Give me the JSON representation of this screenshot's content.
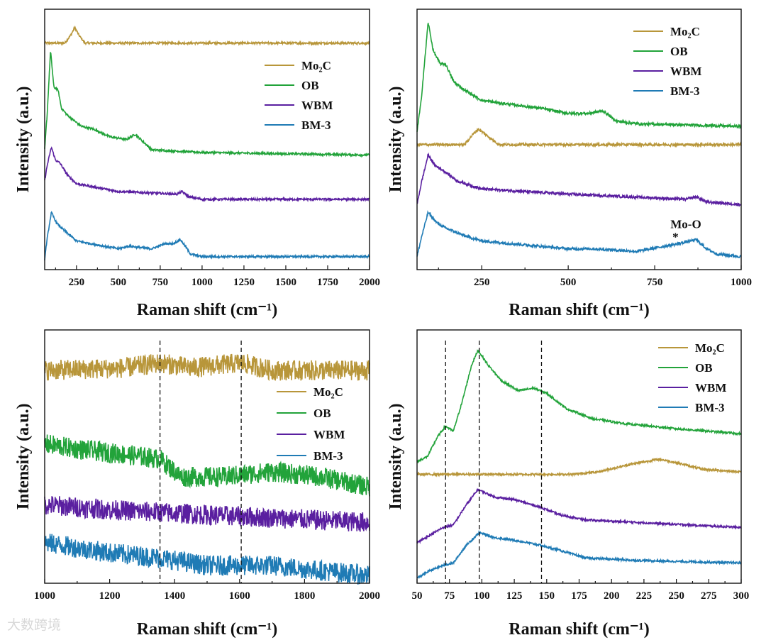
{
  "chart_data": [
    {
      "type": "line",
      "id": "p1",
      "xlabel": "Raman shift (cm⁻¹)",
      "ylabel": "Intensity (a.u.)",
      "xlim": [
        60,
        2000
      ],
      "ylim": [
        0,
        1
      ],
      "xticks": [
        250,
        500,
        750,
        1000,
        1250,
        1500,
        1750,
        2000
      ],
      "minor_step": 125,
      "legend_position": "upper-right-center",
      "noise": 0.004,
      "series": [
        {
          "name": "Mo₂C",
          "color": "#b8963a",
          "points": [
            [
              60,
              0.87
            ],
            [
              180,
              0.87
            ],
            [
              215,
              0.9
            ],
            [
              240,
              0.93
            ],
            [
              265,
              0.9
            ],
            [
              300,
              0.87
            ],
            [
              2000,
              0.87
            ]
          ]
        },
        {
          "name": "OB",
          "color": "#22a33a",
          "points": [
            [
              60,
              0.46
            ],
            [
              75,
              0.6
            ],
            [
              95,
              0.84
            ],
            [
              115,
              0.7
            ],
            [
              140,
              0.69
            ],
            [
              160,
              0.62
            ],
            [
              200,
              0.59
            ],
            [
              280,
              0.55
            ],
            [
              350,
              0.54
            ],
            [
              450,
              0.51
            ],
            [
              550,
              0.5
            ],
            [
              600,
              0.52
            ],
            [
              650,
              0.49
            ],
            [
              700,
              0.46
            ],
            [
              1000,
              0.45
            ],
            [
              2000,
              0.44
            ]
          ]
        },
        {
          "name": "WBM",
          "color": "#5a1fa0",
          "points": [
            [
              60,
              0.34
            ],
            [
              75,
              0.4
            ],
            [
              100,
              0.47
            ],
            [
              125,
              0.42
            ],
            [
              150,
              0.41
            ],
            [
              200,
              0.36
            ],
            [
              250,
              0.33
            ],
            [
              500,
              0.3
            ],
            [
              850,
              0.29
            ],
            [
              880,
              0.3
            ],
            [
              920,
              0.28
            ],
            [
              1000,
              0.27
            ],
            [
              2000,
              0.27
            ]
          ]
        },
        {
          "name": "BM-3",
          "color": "#1f7bb5",
          "points": [
            [
              60,
              0.04
            ],
            [
              75,
              0.12
            ],
            [
              100,
              0.22
            ],
            [
              130,
              0.18
            ],
            [
              160,
              0.16
            ],
            [
              250,
              0.11
            ],
            [
              500,
              0.08
            ],
            [
              560,
              0.09
            ],
            [
              700,
              0.08
            ],
            [
              780,
              0.1
            ],
            [
              830,
              0.1
            ],
            [
              870,
              0.115
            ],
            [
              900,
              0.09
            ],
            [
              930,
              0.06
            ],
            [
              1000,
              0.05
            ],
            [
              2000,
              0.05
            ]
          ]
        }
      ]
    },
    {
      "type": "line",
      "id": "p2",
      "xlabel": "Raman shift (cm⁻¹)",
      "ylabel": "Intensity (a.u.)",
      "xlim": [
        63,
        1000
      ],
      "ylim": [
        0,
        1
      ],
      "xticks": [
        250,
        500,
        750,
        1000
      ],
      "minor_step": 125,
      "legend_position": "top-right",
      "noise": 0.005,
      "annotations": [
        {
          "text": "Mo-O",
          "x": 840,
          "y": 0.16
        },
        {
          "text": "*",
          "x": 810,
          "y": 0.11
        }
      ],
      "series": [
        {
          "name": "Mo₂C",
          "color": "#b8963a",
          "points": [
            [
              63,
              0.48
            ],
            [
              200,
              0.48
            ],
            [
              225,
              0.52
            ],
            [
              240,
              0.54
            ],
            [
              260,
              0.52
            ],
            [
              300,
              0.48
            ],
            [
              1000,
              0.48
            ]
          ]
        },
        {
          "name": "OB",
          "color": "#22a33a",
          "points": [
            [
              63,
              0.53
            ],
            [
              75,
              0.65
            ],
            [
              85,
              0.8
            ],
            [
              95,
              0.95
            ],
            [
              110,
              0.84
            ],
            [
              130,
              0.79
            ],
            [
              145,
              0.79
            ],
            [
              170,
              0.72
            ],
            [
              200,
              0.69
            ],
            [
              250,
              0.65
            ],
            [
              300,
              0.64
            ],
            [
              360,
              0.63
            ],
            [
              420,
              0.62
            ],
            [
              500,
              0.6
            ],
            [
              560,
              0.6
            ],
            [
              600,
              0.61
            ],
            [
              640,
              0.57
            ],
            [
              700,
              0.56
            ],
            [
              1000,
              0.55
            ]
          ]
        },
        {
          "name": "WBM",
          "color": "#5a1fa0",
          "points": [
            [
              63,
              0.25
            ],
            [
              75,
              0.33
            ],
            [
              95,
              0.44
            ],
            [
              115,
              0.4
            ],
            [
              140,
              0.38
            ],
            [
              180,
              0.34
            ],
            [
              250,
              0.31
            ],
            [
              500,
              0.29
            ],
            [
              840,
              0.27
            ],
            [
              870,
              0.28
            ],
            [
              900,
              0.26
            ],
            [
              1000,
              0.25
            ]
          ]
        },
        {
          "name": "BM-3",
          "color": "#1f7bb5",
          "points": [
            [
              63,
              0.05
            ],
            [
              75,
              0.12
            ],
            [
              95,
              0.22
            ],
            [
              120,
              0.18
            ],
            [
              145,
              0.16
            ],
            [
              200,
              0.13
            ],
            [
              250,
              0.11
            ],
            [
              500,
              0.08
            ],
            [
              570,
              0.08
            ],
            [
              700,
              0.07
            ],
            [
              780,
              0.09
            ],
            [
              820,
              0.1
            ],
            [
              870,
              0.115
            ],
            [
              900,
              0.08
            ],
            [
              930,
              0.06
            ],
            [
              1000,
              0.05
            ]
          ]
        }
      ]
    },
    {
      "type": "line",
      "id": "p3",
      "xlabel": "Raman shift (cm⁻¹)",
      "ylabel": "Intensity (a.u.)",
      "xlim": [
        1000,
        2000
      ],
      "ylim": [
        0,
        1
      ],
      "xticks": [
        1000,
        1200,
        1400,
        1600,
        1800,
        2000
      ],
      "minor_step": 100,
      "legend_position": "middle-right",
      "noise": 0.04,
      "vlines": [
        1355,
        1605
      ],
      "series": [
        {
          "name": "Mo₂C",
          "color": "#b8963a",
          "points": [
            [
              1000,
              0.84
            ],
            [
              1250,
              0.85
            ],
            [
              1355,
              0.87
            ],
            [
              1450,
              0.85
            ],
            [
              1605,
              0.87
            ],
            [
              1700,
              0.84
            ],
            [
              2000,
              0.84
            ]
          ]
        },
        {
          "name": "OB",
          "color": "#22a33a",
          "points": [
            [
              1000,
              0.55
            ],
            [
              1100,
              0.53
            ],
            [
              1300,
              0.5
            ],
            [
              1355,
              0.49
            ],
            [
              1420,
              0.42
            ],
            [
              1550,
              0.42
            ],
            [
              1700,
              0.44
            ],
            [
              1850,
              0.42
            ],
            [
              2000,
              0.38
            ]
          ]
        },
        {
          "name": "WBM",
          "color": "#5a1fa0",
          "points": [
            [
              1000,
              0.31
            ],
            [
              1200,
              0.29
            ],
            [
              1500,
              0.27
            ],
            [
              2000,
              0.24
            ]
          ]
        },
        {
          "name": "BM-3",
          "color": "#1f7bb5",
          "points": [
            [
              1000,
              0.16
            ],
            [
              1200,
              0.12
            ],
            [
              1355,
              0.1
            ],
            [
              1500,
              0.07
            ],
            [
              1700,
              0.07
            ],
            [
              2000,
              0.03
            ]
          ]
        }
      ]
    },
    {
      "type": "line",
      "id": "p4",
      "xlabel": "Raman shift (cm⁻¹)",
      "ylabel": "Intensity (a.u.)",
      "xlim": [
        50,
        300
      ],
      "ylim": [
        0,
        1
      ],
      "xticks": [
        50,
        75,
        100,
        125,
        150,
        175,
        200,
        225,
        250,
        275,
        300
      ],
      "minor_step": 12.5,
      "legend_position": "top-right",
      "noise": 0.004,
      "vlines": [
        72,
        98,
        146
      ],
      "series": [
        {
          "name": "Mo₂C",
          "color": "#b8963a",
          "points": [
            [
              50,
              0.43
            ],
            [
              170,
              0.43
            ],
            [
              190,
              0.44
            ],
            [
              215,
              0.47
            ],
            [
              237,
              0.49
            ],
            [
              255,
              0.47
            ],
            [
              270,
              0.45
            ],
            [
              300,
              0.44
            ]
          ]
        },
        {
          "name": "OB",
          "color": "#22a33a",
          "points": [
            [
              50,
              0.48
            ],
            [
              58,
              0.5
            ],
            [
              66,
              0.58
            ],
            [
              72,
              0.62
            ],
            [
              78,
              0.6
            ],
            [
              85,
              0.72
            ],
            [
              92,
              0.86
            ],
            [
              97,
              0.92
            ],
            [
              105,
              0.86
            ],
            [
              115,
              0.8
            ],
            [
              128,
              0.76
            ],
            [
              140,
              0.77
            ],
            [
              150,
              0.75
            ],
            [
              165,
              0.69
            ],
            [
              185,
              0.65
            ],
            [
              210,
              0.63
            ],
            [
              250,
              0.61
            ],
            [
              300,
              0.59
            ]
          ]
        },
        {
          "name": "WBM",
          "color": "#5a1fa0",
          "points": [
            [
              50,
              0.16
            ],
            [
              60,
              0.19
            ],
            [
              70,
              0.22
            ],
            [
              78,
              0.23
            ],
            [
              88,
              0.31
            ],
            [
              97,
              0.37
            ],
            [
              110,
              0.34
            ],
            [
              125,
              0.33
            ],
            [
              145,
              0.3
            ],
            [
              160,
              0.27
            ],
            [
              180,
              0.25
            ],
            [
              220,
              0.24
            ],
            [
              300,
              0.22
            ]
          ]
        },
        {
          "name": "BM-3",
          "color": "#1f7bb5",
          "points": [
            [
              50,
              0.02
            ],
            [
              60,
              0.05
            ],
            [
              70,
              0.07
            ],
            [
              78,
              0.08
            ],
            [
              88,
              0.15
            ],
            [
              98,
              0.2
            ],
            [
              110,
              0.18
            ],
            [
              125,
              0.17
            ],
            [
              145,
              0.15
            ],
            [
              160,
              0.13
            ],
            [
              180,
              0.1
            ],
            [
              220,
              0.09
            ],
            [
              300,
              0.08
            ]
          ]
        }
      ]
    }
  ],
  "watermark": "大数跨境"
}
